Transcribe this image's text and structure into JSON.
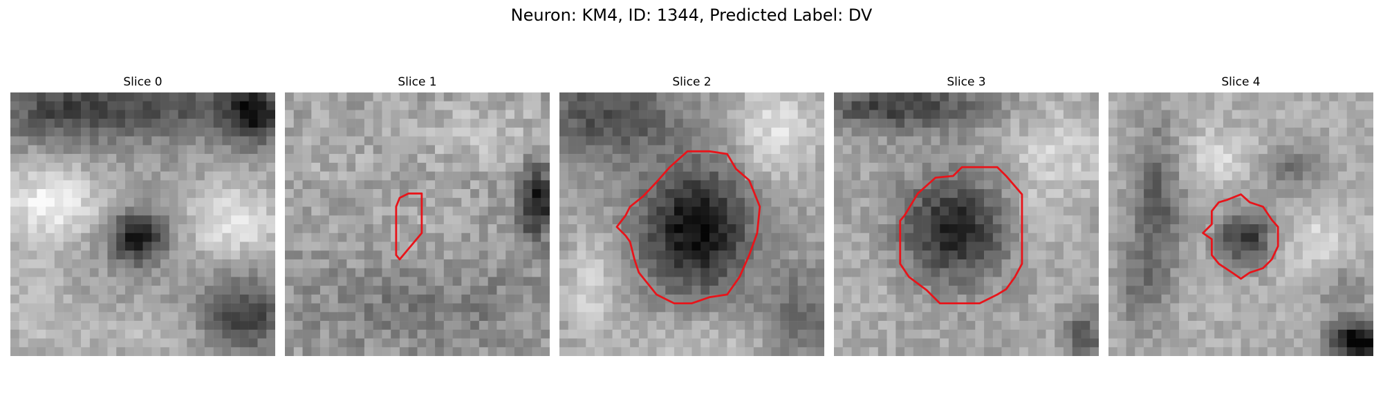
{
  "figure": {
    "title": "Neuron: KM4, ID: 1344, Predicted Label: DV",
    "contour_color": "#e8141a"
  },
  "panels": [
    {
      "title": "Slice 0",
      "has_contour": false,
      "image_description_icon": "grayscale-microscopy-slice-icon"
    },
    {
      "title": "Slice 1",
      "has_contour": true,
      "image_description_icon": "grayscale-microscopy-slice-icon"
    },
    {
      "title": "Slice 2",
      "has_contour": true,
      "image_description_icon": "grayscale-microscopy-slice-icon"
    },
    {
      "title": "Slice 3",
      "has_contour": true,
      "image_description_icon": "grayscale-microscopy-slice-icon"
    },
    {
      "title": "Slice 4",
      "has_contour": true,
      "image_description_icon": "grayscale-microscopy-slice-icon"
    }
  ]
}
